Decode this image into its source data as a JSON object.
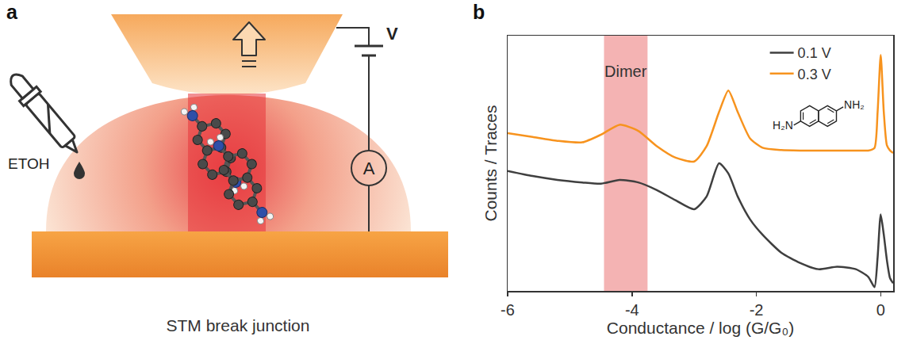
{
  "diagram": {
    "panel": "a",
    "labels": {
      "solvent": "ETOH",
      "voltage": "V",
      "current": "A"
    },
    "caption": "STM break junction"
  },
  "chart_data": {
    "panel": "b",
    "type": "line",
    "xlabel": "Conductance / log (G/G₀)",
    "ylabel": "Counts / Traces",
    "x": [
      -6,
      -5.6,
      -5.2,
      -4.8,
      -4.5,
      -4.2,
      -3.9,
      -3.6,
      -3.3,
      -3.0,
      -2.8,
      -2.6,
      -2.45,
      -2.3,
      -2.1,
      -1.9,
      -1.6,
      -1.3,
      -1.0,
      -0.7,
      -0.4,
      -0.2,
      -0.1,
      -0.05,
      0,
      0.05,
      0.1,
      0.15,
      0.2
    ],
    "series": [
      {
        "name": "0.1 V",
        "color": "#3f3f3f",
        "values": [
          4.7,
          4.5,
          4.35,
          4.25,
          4.2,
          4.35,
          4.25,
          3.95,
          3.55,
          3.2,
          3.7,
          5.0,
          4.6,
          3.7,
          2.8,
          2.2,
          1.5,
          1.1,
          0.85,
          0.95,
          0.85,
          0.55,
          0.15,
          1.3,
          3.0,
          2.2,
          1.2,
          0.5,
          0.3
        ]
      },
      {
        "name": "0.3 V",
        "color": "#f7931e",
        "values": [
          6.18,
          6.03,
          5.88,
          5.82,
          6.12,
          6.51,
          6.27,
          5.67,
          5.22,
          5.07,
          5.67,
          7.01,
          7.85,
          7.01,
          5.97,
          5.61,
          5.52,
          5.5,
          5.5,
          5.5,
          5.5,
          5.5,
          5.6,
          7.0,
          9.25,
          7.0,
          5.7,
          5.5,
          5.4
        ]
      }
    ],
    "xlim": [
      -6,
      0.2
    ],
    "xticks": [
      -6,
      -4,
      -2,
      0
    ],
    "ylim": [
      0,
      10
    ],
    "tick_labels": "x",
    "grid": false,
    "legend": "top right",
    "bands": [
      {
        "label": "Dimer",
        "from": -4.45,
        "to": -3.75,
        "color": "#f4b3b3"
      }
    ],
    "inset": {
      "labels": [
        "H₂N",
        "NH₂"
      ]
    }
  }
}
